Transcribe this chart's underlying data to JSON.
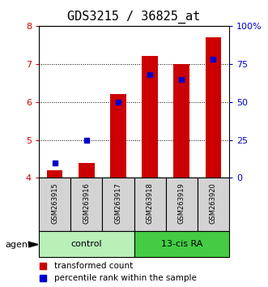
{
  "title": "GDS3215 / 36825_at",
  "categories": [
    "GSM263915",
    "GSM263916",
    "GSM263917",
    "GSM263918",
    "GSM263919",
    "GSM263920"
  ],
  "red_values": [
    4.2,
    4.4,
    6.2,
    7.2,
    7.0,
    7.7
  ],
  "blue_values": [
    10,
    25,
    50,
    68,
    65,
    78
  ],
  "ylim_left": [
    4,
    8
  ],
  "ylim_right": [
    0,
    100
  ],
  "yticks_left": [
    4,
    5,
    6,
    7,
    8
  ],
  "yticks_right": [
    0,
    25,
    50,
    75,
    100
  ],
  "yticklabels_right": [
    "0",
    "25",
    "50",
    "75",
    "100%"
  ],
  "groups": [
    {
      "label": "control",
      "color": "#b8f0b8"
    },
    {
      "label": "13-cis RA",
      "color": "#44cc44"
    }
  ],
  "agent_label": "agent",
  "legend_red": "transformed count",
  "legend_blue": "percentile rank within the sample",
  "bar_color": "#cc0000",
  "dot_color": "#0000cc",
  "bar_width": 0.5,
  "title_fontsize": 11,
  "axis_color_left": "#cc0000",
  "axis_color_right": "#0000cc"
}
